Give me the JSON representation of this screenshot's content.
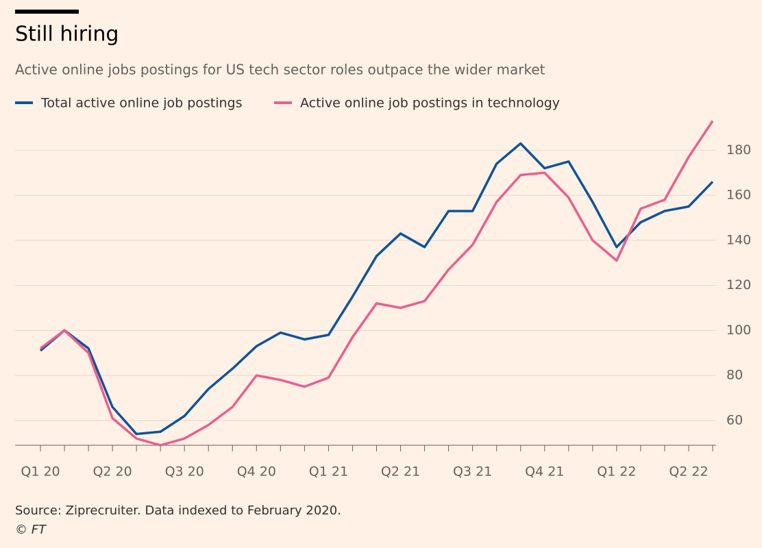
{
  "chart_data": {
    "type": "line",
    "title": "Still hiring",
    "subtitle": "Active online jobs postings for US tech sector roles outpace the wider market",
    "source": "Source: Ziprecruiter. Data indexed to February 2020.",
    "credit": "© FT",
    "categories": [
      "Q1 20",
      null,
      null,
      "Q2 20",
      null,
      null,
      "Q3 20",
      null,
      null,
      "Q4 20",
      null,
      null,
      "Q1 21",
      null,
      null,
      "Q2 21",
      null,
      null,
      "Q3 21",
      null,
      null,
      "Q4 21",
      null,
      null,
      "Q1 22",
      null,
      null,
      "Q2 22",
      null
    ],
    "series": [
      {
        "name": "Total active online job postings",
        "color": "#0f5499",
        "values": [
          91,
          100,
          92,
          66,
          54,
          55,
          62,
          74,
          83,
          93,
          99,
          96,
          98,
          115,
          133,
          143,
          137,
          153,
          153,
          174,
          183,
          172,
          175,
          157,
          137,
          148,
          153,
          155,
          166
        ]
      },
      {
        "name": "Active online job postings in technology",
        "color": "#eb5e8d",
        "values": [
          92,
          100,
          90,
          61,
          52,
          49,
          52,
          58,
          66,
          80,
          78,
          75,
          79,
          97,
          112,
          110,
          113,
          127,
          138,
          157,
          169,
          170,
          159,
          140,
          131,
          154,
          158,
          177,
          193
        ]
      }
    ],
    "ylim": [
      49,
      195
    ],
    "yticks": [
      60,
      80,
      100,
      120,
      140,
      160,
      180
    ],
    "grid": true
  }
}
